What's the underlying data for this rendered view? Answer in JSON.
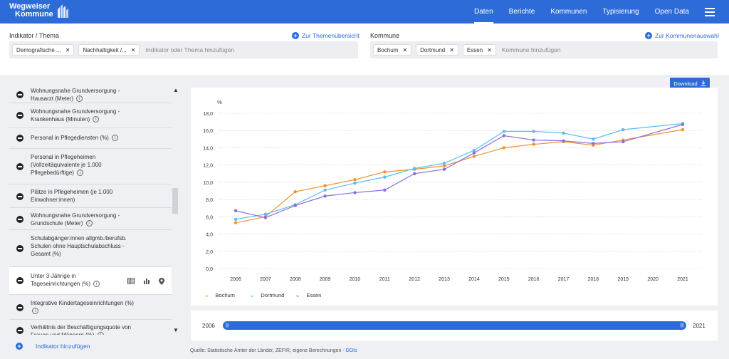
{
  "header": {
    "logo_line1": "Wegweiser",
    "logo_line2": "Kommune",
    "nav": [
      "Daten",
      "Berichte",
      "Kommunen",
      "Typisierung",
      "Open Data"
    ],
    "active_nav": "Daten"
  },
  "filters": {
    "indicator_label": "Indikator / Thema",
    "indicator_link": "Zur Themenübersicht",
    "indicator_chips": [
      "Demografische ...",
      "Nachhaltigkeit /..."
    ],
    "indicator_placeholder": "Indikator oder Thema hinzufügen",
    "kommune_label": "Kommune",
    "kommune_link": "Zur Kommunenauswahl",
    "kommune_chips": [
      "Bochum",
      "Dortmund",
      "Essen"
    ],
    "kommune_placeholder": "Kommune hinzufügen"
  },
  "indicator_list": [
    {
      "text": "Wohnungsnahe Grundversorgung - Hausarzt (Meter)"
    },
    {
      "text": "Wohnungsnahe Grundversorgung - Krankenhaus (Minuten)"
    },
    {
      "text": "Personal in Pflegediensten (%)"
    },
    {
      "text": "Personal in Pflegeheimen (Vollzeitäquivalente je 1.000 Pflegebedürftige)"
    },
    {
      "text": "Plätze in Pflegeheimen (je 1.000 Einwohner:innen)"
    },
    {
      "text": "Wohnungsnahe Grundversorgung - Grundschule (Meter)"
    },
    {
      "text": "Schulabgänger:innen allgmb./berufsb. Schulen ohne Hauptschulabschluss - Gesamt (%)"
    },
    {
      "text": "Unter 3-Jährige in Tageseinrichtungen (%)"
    },
    {
      "text": "Integrative Kindertageseinrichtungen (%)"
    },
    {
      "text": "Verhältnis der Beschäftigungsquote von Frauen und Männern (%)"
    }
  ],
  "add_indicator": "Indikator hinzufügen",
  "download_label": "Download",
  "info_glyph": "i",
  "slider": {
    "start": "2006",
    "end": "2021"
  },
  "source": {
    "text": "Quelle: Statistische Ämter der Länder, ZEFIR, eigene Berechnungen - ",
    "link": "DOIs"
  },
  "colors": {
    "accent": "#2c6bd8",
    "Bochum": "#f0932b",
    "Dortmund": "#5bbcf0",
    "Essen": "#8a6de3"
  },
  "chart_data": {
    "type": "line",
    "title": "",
    "xlabel": "",
    "ylabel": "%",
    "ylim": [
      0,
      18
    ],
    "yticks": [
      "0,0",
      "2,0",
      "4,0",
      "6,0",
      "8,0",
      "10,0",
      "12,0",
      "14,0",
      "16,0",
      "18,0"
    ],
    "x": [
      "2006",
      "2007",
      "2008",
      "2009",
      "2010",
      "2011",
      "2012",
      "2013",
      "2014",
      "2015",
      "2016",
      "2017",
      "2018",
      "2019",
      "2020",
      "2021"
    ],
    "grid": true,
    "legend": "bottom-left",
    "series": [
      {
        "name": "Bochum",
        "values": [
          5.3,
          6.0,
          8.9,
          9.6,
          10.3,
          11.2,
          11.5,
          11.9,
          13.0,
          14.0,
          14.4,
          14.7,
          14.3,
          14.9,
          null,
          16.1
        ]
      },
      {
        "name": "Dortmund",
        "values": [
          5.7,
          6.3,
          7.4,
          9.1,
          9.9,
          10.6,
          11.6,
          12.2,
          13.7,
          15.9,
          15.9,
          15.7,
          15.0,
          16.1,
          null,
          16.8
        ]
      },
      {
        "name": "Essen",
        "values": [
          6.7,
          5.9,
          7.3,
          8.4,
          8.8,
          9.1,
          11.0,
          11.5,
          13.4,
          15.4,
          14.9,
          14.8,
          14.5,
          14.7,
          null,
          16.7
        ]
      }
    ]
  }
}
